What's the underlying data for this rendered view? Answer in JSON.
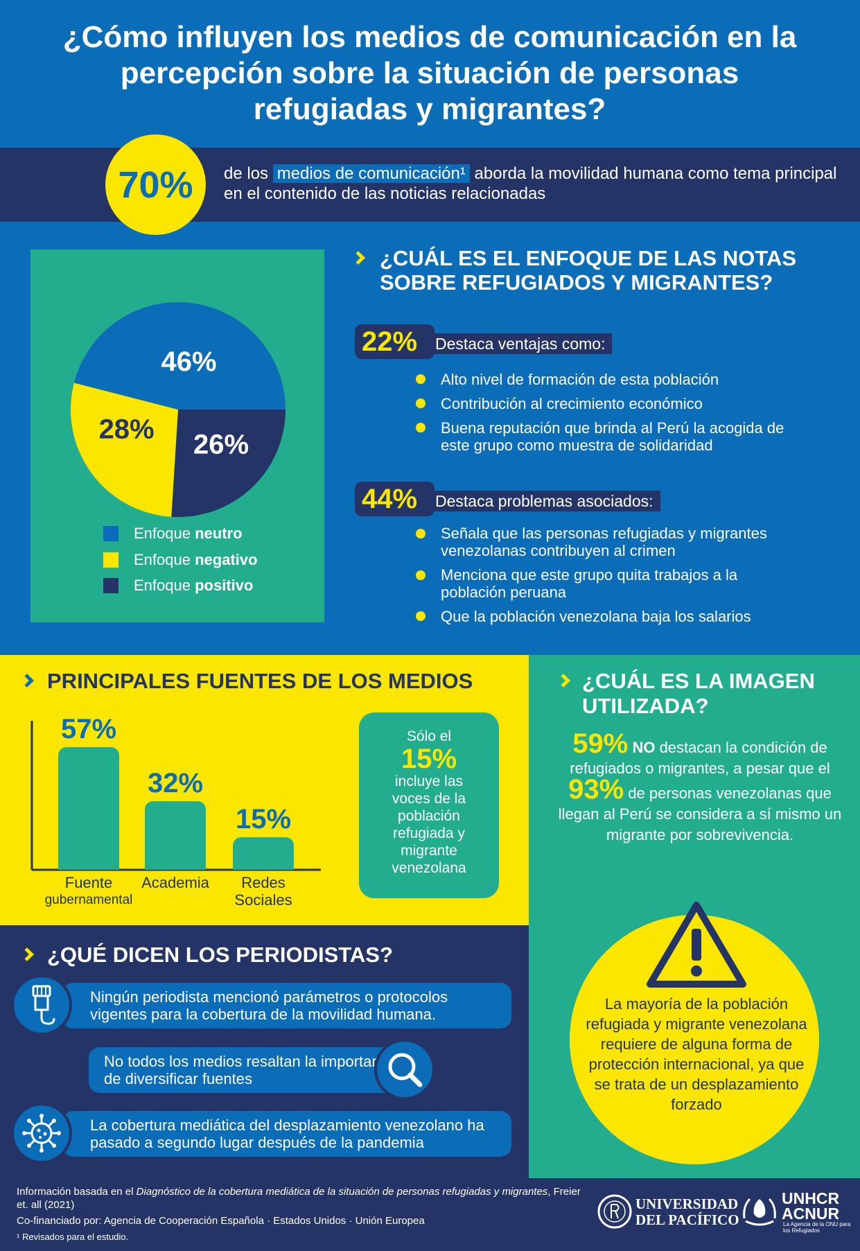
{
  "header": {
    "title": "¿Cómo influyen los medios de comunicación en la percepción sobre la situación de personas refugiadas y migrantes?"
  },
  "intro": {
    "percent": "70%",
    "text_before": "de los",
    "highlight": "medios de comunicación¹",
    "text_after": "aborda la movilidad humana como tema principal en el contenido de las noticias relacionadas"
  },
  "enfoque": {
    "heading_line1": "¿CUÁL ES EL ENFOQUE DE LAS NOTAS",
    "heading_line2": "SOBRE REFUGIADOS Y MIGRANTES?",
    "ventajas_pct": "22%",
    "ventajas_label": "Destaca ventajas como:",
    "ventajas_items": [
      "Alto nivel de formación de esta población",
      "Contribución al crecimiento económico",
      "Buena reputación que brinda al Perú la acogida de este grupo como muestra de solidaridad"
    ],
    "problemas_pct": "44%",
    "problemas_label": "Destaca problemas asociados:",
    "problemas_items": [
      "Señala que las personas refugiadas y migrantes venezolanas contribuyen al crimen",
      "Menciona que este grupo quita trabajos a la población peruana",
      "Que la población venezolana baja los salarios"
    ]
  },
  "chart_data": [
    {
      "type": "pie",
      "title": "",
      "slices": [
        {
          "label": "Enfoque neutro",
          "value": 46,
          "display": "46%",
          "color": "#0b6cb8"
        },
        {
          "label": "Enfoque positivo",
          "value": 26,
          "display": "26%",
          "color": "#253466"
        },
        {
          "label": "Enfoque negativo",
          "value": 28,
          "display": "28%",
          "color": "#fbe600"
        }
      ],
      "legend": [
        {
          "prefix": "Enfoque ",
          "strong": "neutro",
          "color": "#0b6cb8"
        },
        {
          "prefix": "Enfoque ",
          "strong": "negativo",
          "color": "#fbe600"
        },
        {
          "prefix": "Enfoque ",
          "strong": "positivo",
          "color": "#253466"
        }
      ],
      "legend_position": "bottom"
    },
    {
      "type": "bar",
      "title": "PRINCIPALES FUENTES DE LOS MEDIOS",
      "categories": [
        "Fuente gubernamental",
        "Academia",
        "Redes Sociales"
      ],
      "category_lines": [
        [
          "Fuente",
          "gubernamental"
        ],
        [
          "Academia"
        ],
        [
          "Redes",
          "Sociales"
        ]
      ],
      "values": [
        57,
        32,
        15
      ],
      "display": [
        "57%",
        "32%",
        "15%"
      ],
      "ylim": [
        0,
        57
      ]
    }
  ],
  "fuentes": {
    "heading": "PRINCIPALES FUENTES DE LOS MEDIOS",
    "voice_pre": "Sólo el",
    "voice_pct": "15%",
    "voice_post": "incluye las voces de la población refugiada y migrante venezolana"
  },
  "imagen": {
    "heading_line1": "¿CUÁL ES LA IMAGEN",
    "heading_line2": "UTILIZADA?",
    "pct1": "59%",
    "no": "NO",
    "text1": "destacan la condición de refugiados o migrantes, a pesar que el",
    "pct2": "93%",
    "text2": "de personas venezolanas que llegan al Perú se considera a sí mismo un migrante por sobrevivencia.",
    "warning": "La mayoría de la población refugiada y migrante venezolana requiere de alguna forma de protección internacional, ya que se trata de un desplazamiento forzado"
  },
  "periodistas": {
    "heading": "¿QUÉ DICEN LOS PERIODISTAS?",
    "items": [
      "Ningún periodista mencionó parámetros o protocolos vigentes para la cobertura de la movilidad humana.",
      "No todos los medios resaltan la importancia de diversificar fuentes",
      "La cobertura mediática del desplazamiento venezolano ha pasado a segundo lugar después de la pandemia"
    ]
  },
  "footer": {
    "source_pre": "Información basada en el",
    "source_title": "Diagnóstico de la cobertura mediática de la situación de personas refugiadas y migrantes",
    "source_post": ", Freier et. all (2021)",
    "cofin": "Co-financiado por: Agencia de Cooperación Española · Estados Unidos · Unión Europea",
    "note": "¹ Revisados para el estudio.",
    "up_line1": "UNIVERSIDAD",
    "up_line2": "DEL PACÍFICO",
    "unhcr_line1": "UNHCR",
    "unhcr_line2": "ACNUR",
    "unhcr_sub": "La Agencia de la ONU para los Refugiados"
  },
  "colors": {
    "blue": "#0b6cb8",
    "navy": "#253466",
    "yellow": "#fbe600",
    "teal": "#22ad8f"
  }
}
